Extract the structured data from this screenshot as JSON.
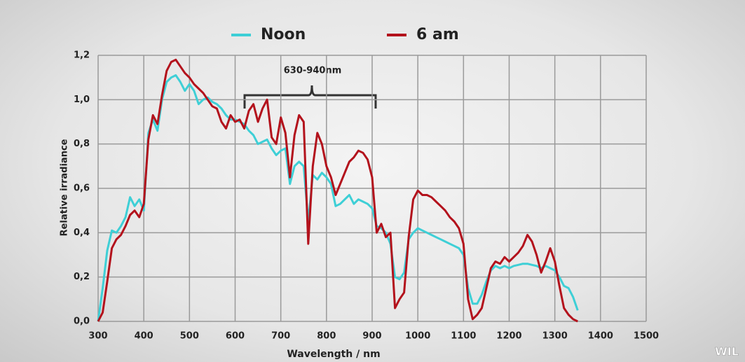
{
  "chart_data": {
    "type": "line",
    "y_label": "Relative irradiance",
    "x_label": "Wavelength / nm",
    "annotation": "630-940nm",
    "watermark": "WIL",
    "xlim": [
      300,
      1500
    ],
    "xticks": [
      300,
      400,
      500,
      600,
      700,
      800,
      900,
      1000,
      1100,
      1200,
      1300,
      1400,
      1500
    ],
    "ylim": [
      0,
      1.2
    ],
    "yticks": [
      {
        "value": 0,
        "label": "0,0"
      },
      {
        "value": 0.2,
        "label": "0,2"
      },
      {
        "value": 0.4,
        "label": "0,4"
      },
      {
        "value": 0.6,
        "label": "0,6"
      },
      {
        "value": 0.8,
        "label": "0,8"
      },
      {
        "value": 1.0,
        "label": "1,0"
      },
      {
        "value": 1.2,
        "label": "1,2"
      }
    ],
    "grid": true,
    "x": [
      300,
      310,
      320,
      330,
      340,
      350,
      360,
      370,
      380,
      390,
      400,
      410,
      420,
      430,
      440,
      450,
      460,
      470,
      480,
      490,
      500,
      510,
      520,
      530,
      540,
      550,
      560,
      570,
      580,
      590,
      600,
      610,
      620,
      630,
      640,
      650,
      660,
      670,
      680,
      690,
      700,
      710,
      720,
      730,
      740,
      750,
      760,
      770,
      780,
      790,
      800,
      810,
      820,
      830,
      840,
      850,
      860,
      870,
      880,
      890,
      900,
      910,
      920,
      930,
      940,
      950,
      960,
      970,
      980,
      990,
      1000,
      1010,
      1020,
      1030,
      1040,
      1050,
      1060,
      1070,
      1080,
      1090,
      1100,
      1110,
      1120,
      1130,
      1140,
      1150,
      1160,
      1170,
      1180,
      1190,
      1200,
      1210,
      1220,
      1230,
      1240,
      1250,
      1260,
      1270,
      1280,
      1290,
      1300,
      1310,
      1320,
      1330,
      1340,
      1350
    ],
    "series": [
      {
        "name": "Noon",
        "color": "#3ecfd6",
        "values": [
          0,
          0.15,
          0.32,
          0.41,
          0.4,
          0.43,
          0.47,
          0.56,
          0.52,
          0.55,
          0.5,
          0.85,
          0.91,
          0.86,
          1.0,
          1.08,
          1.1,
          1.11,
          1.08,
          1.04,
          1.07,
          1.04,
          0.98,
          1.0,
          1.01,
          0.99,
          0.98,
          0.96,
          0.93,
          0.91,
          0.91,
          0.9,
          0.89,
          0.86,
          0.84,
          0.8,
          0.81,
          0.82,
          0.78,
          0.75,
          0.77,
          0.78,
          0.62,
          0.7,
          0.72,
          0.7,
          0.45,
          0.66,
          0.64,
          0.67,
          0.65,
          0.62,
          0.52,
          0.53,
          0.55,
          0.57,
          0.53,
          0.55,
          0.54,
          0.53,
          0.51,
          0.43,
          0.42,
          0.4,
          0.35,
          0.2,
          0.19,
          0.22,
          0.37,
          0.4,
          0.42,
          0.41,
          0.4,
          0.39,
          0.38,
          0.37,
          0.36,
          0.35,
          0.34,
          0.33,
          0.3,
          0.15,
          0.08,
          0.08,
          0.12,
          0.18,
          0.23,
          0.25,
          0.24,
          0.25,
          0.24,
          0.25,
          0.255,
          0.26,
          0.26,
          0.255,
          0.25,
          0.24,
          0.25,
          0.24,
          0.23,
          0.2,
          0.16,
          0.15,
          0.11,
          0.05
        ]
      },
      {
        "name": "6 am",
        "color": "#b3121c",
        "values": [
          0,
          0.04,
          0.18,
          0.33,
          0.37,
          0.39,
          0.43,
          0.48,
          0.5,
          0.47,
          0.53,
          0.82,
          0.93,
          0.89,
          1.02,
          1.13,
          1.17,
          1.18,
          1.15,
          1.12,
          1.1,
          1.07,
          1.05,
          1.03,
          1.0,
          0.97,
          0.96,
          0.9,
          0.87,
          0.93,
          0.9,
          0.91,
          0.87,
          0.95,
          0.98,
          0.9,
          0.96,
          1.0,
          0.83,
          0.8,
          0.92,
          0.85,
          0.65,
          0.84,
          0.93,
          0.9,
          0.35,
          0.7,
          0.85,
          0.8,
          0.7,
          0.65,
          0.57,
          0.62,
          0.67,
          0.72,
          0.74,
          0.77,
          0.76,
          0.73,
          0.65,
          0.4,
          0.44,
          0.38,
          0.4,
          0.06,
          0.1,
          0.13,
          0.38,
          0.55,
          0.59,
          0.57,
          0.57,
          0.56,
          0.54,
          0.52,
          0.5,
          0.47,
          0.45,
          0.42,
          0.35,
          0.1,
          0.01,
          0.03,
          0.06,
          0.15,
          0.24,
          0.27,
          0.26,
          0.29,
          0.27,
          0.29,
          0.31,
          0.34,
          0.39,
          0.36,
          0.3,
          0.22,
          0.27,
          0.33,
          0.27,
          0.16,
          0.06,
          0.03,
          0.01,
          0
        ]
      }
    ]
  }
}
